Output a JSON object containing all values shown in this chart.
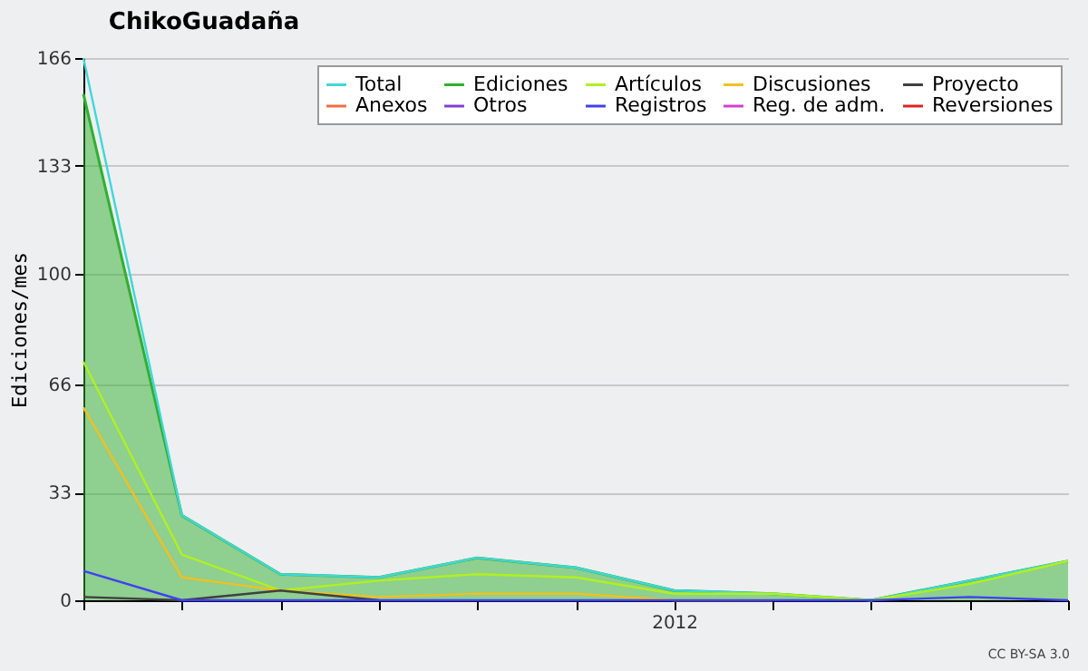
{
  "chart_data": {
    "type": "line",
    "title": "ChikoGuadaña",
    "ylabel": "Ediciones/mes",
    "categories": [
      null,
      null,
      null,
      null,
      null,
      null,
      "2012",
      null,
      null,
      null,
      null
    ],
    "ylim": [
      0,
      166
    ],
    "yticks": [
      0,
      33,
      66,
      100,
      133,
      166
    ],
    "grid": "y",
    "legend": "top right",
    "series": [
      {
        "name": "Total",
        "color": "#40d8d8",
        "values": [
          166,
          26,
          8,
          7,
          13,
          10,
          3,
          2,
          0,
          6,
          12
        ]
      },
      {
        "name": "Ediciones",
        "type": "area",
        "color": "#30b030",
        "values": [
          155,
          26,
          8,
          7,
          13,
          10,
          3,
          2,
          0,
          6,
          12
        ]
      },
      {
        "name": "Artículos",
        "color": "#b0f020",
        "values": [
          73,
          14,
          3,
          6,
          8,
          7,
          2,
          2,
          0,
          5,
          12
        ]
      },
      {
        "name": "Discusiones",
        "color": "#f0c020",
        "values": [
          59,
          7,
          3,
          1,
          2,
          2,
          0,
          0,
          null,
          null,
          null
        ]
      },
      {
        "name": "Proyecto",
        "color": "#404040",
        "values": [
          1,
          0,
          3,
          0,
          null,
          null,
          null,
          null,
          null,
          null,
          null
        ]
      },
      {
        "name": "Anexos",
        "color": "#f07040",
        "values": [
          null,
          null,
          null,
          null,
          null,
          null,
          null,
          null,
          null,
          null,
          null
        ]
      },
      {
        "name": "Otros",
        "color": "#8040d0",
        "values": [
          null,
          null,
          null,
          null,
          null,
          null,
          null,
          null,
          null,
          null,
          null
        ]
      },
      {
        "name": "Registros",
        "color": "#4040f0",
        "values": [
          9,
          0,
          null,
          null,
          null,
          null,
          null,
          null,
          0,
          1,
          0
        ]
      },
      {
        "name": "Reg. de adm.",
        "color": "#d040d0",
        "values": [
          null,
          null,
          null,
          null,
          null,
          null,
          null,
          null,
          null,
          null,
          null
        ]
      },
      {
        "name": "Reversiones",
        "color": "#e02020",
        "values": [
          null,
          null,
          null,
          null,
          null,
          null,
          null,
          null,
          null,
          null,
          null
        ]
      }
    ],
    "annotations": [
      "CC BY-SA 3.0"
    ]
  }
}
